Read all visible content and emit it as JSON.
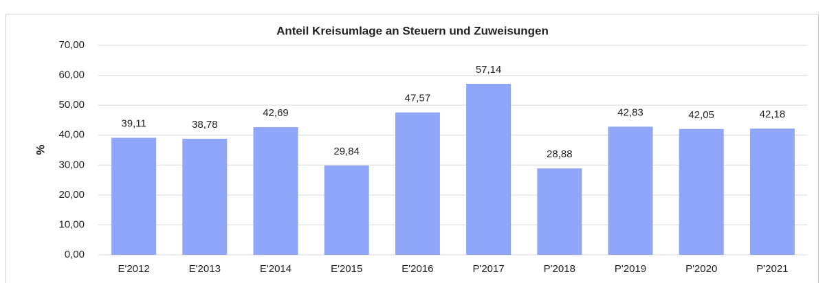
{
  "chart_data": {
    "type": "bar",
    "title": "Anteil Kreisumlage an Steuern und Zuweisungen",
    "y_label": "%",
    "categories": [
      "E'2012",
      "E'2013",
      "E'2014",
      "E'2015",
      "E'2016",
      "P'2017",
      "P'2018",
      "P'2019",
      "P'2020",
      "P'2021"
    ],
    "values": [
      39.11,
      38.78,
      42.69,
      29.84,
      47.57,
      57.14,
      28.88,
      42.83,
      42.05,
      42.18
    ],
    "value_labels": [
      "39,11",
      "38,78",
      "42,69",
      "29,84",
      "47,57",
      "57,14",
      "28,88",
      "42,83",
      "42,05",
      "42,18"
    ],
    "color": "#8fa6f9",
    "ylim": [
      0,
      70
    ],
    "yticks": [
      {
        "value": 0,
        "label": "0,00"
      },
      {
        "value": 10,
        "label": "10,00"
      },
      {
        "value": 20,
        "label": "20,00"
      },
      {
        "value": 30,
        "label": "30,00"
      },
      {
        "value": 40,
        "label": "40,00"
      },
      {
        "value": 50,
        "label": "50,00"
      },
      {
        "value": 60,
        "label": "60,00"
      },
      {
        "value": 70,
        "label": "70,00"
      }
    ],
    "grid": true
  }
}
